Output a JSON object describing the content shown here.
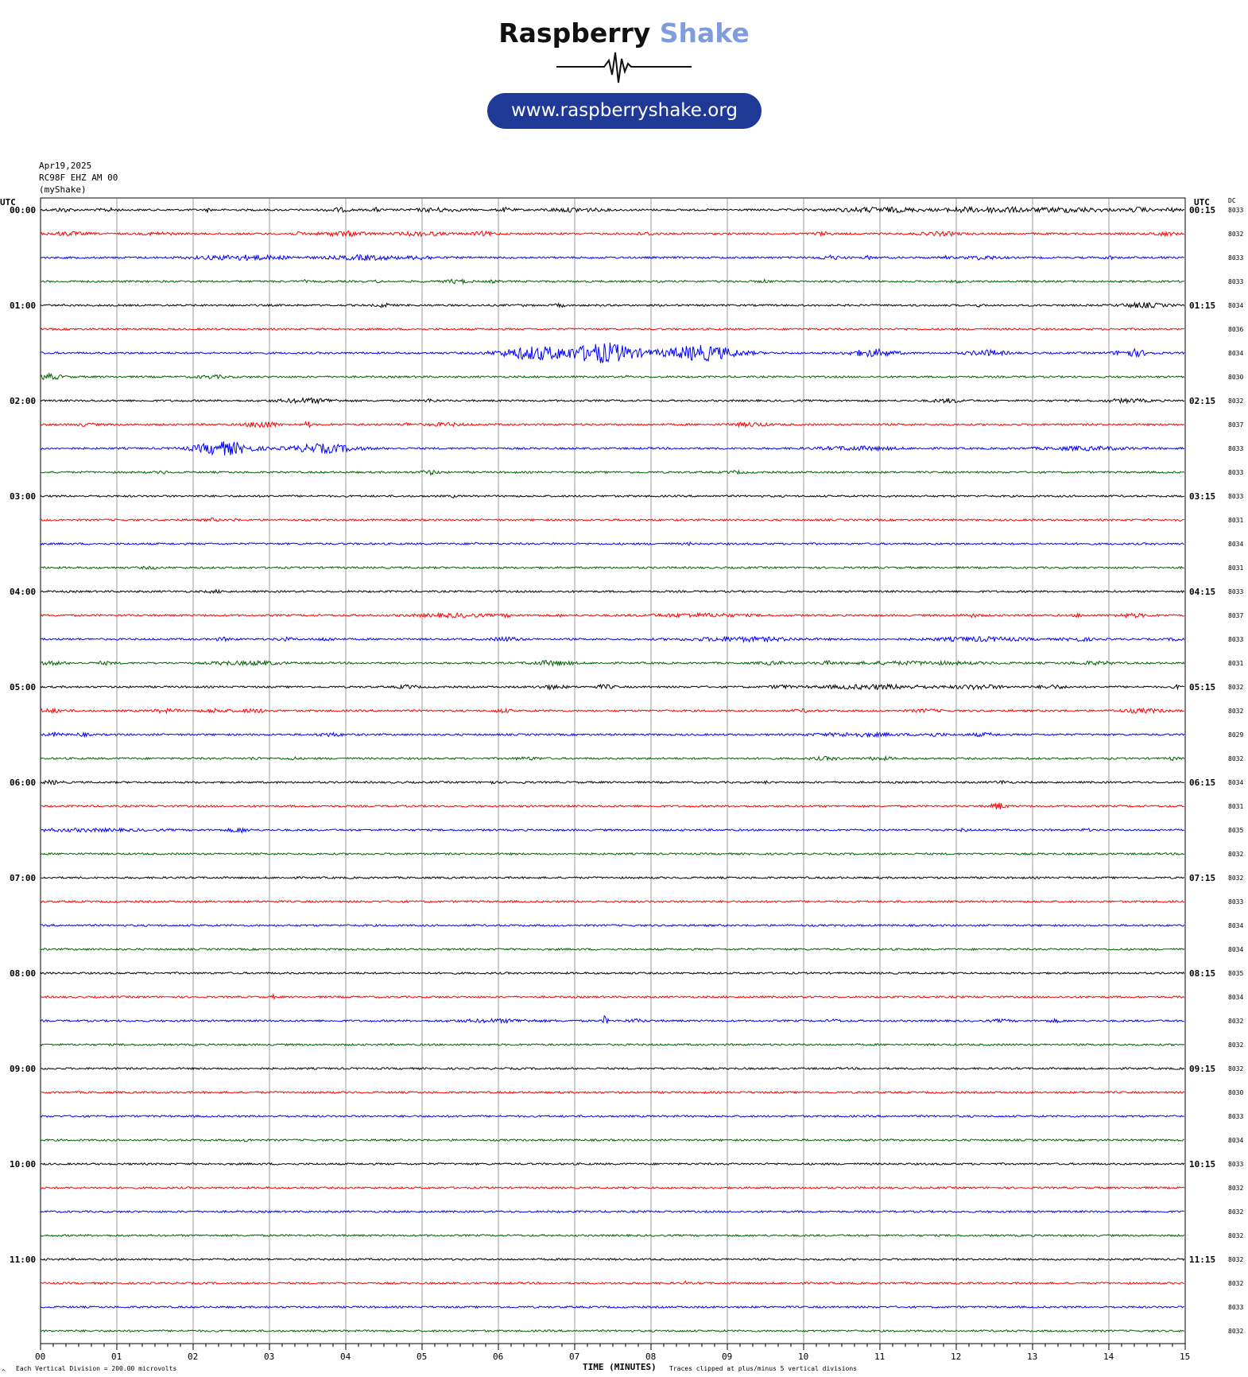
{
  "header": {
    "logo_word1": "Raspberry",
    "logo_word2": "Shake",
    "url": "www.raspberryshake.org",
    "date": "Apr19,2025",
    "station": "RC98F EHZ AM 00",
    "network": "(myShake)",
    "left_utc": "UTC",
    "right_utc": "UTC",
    "dc_label": "DC"
  },
  "footer": {
    "x_axis_title": "TIME (MINUTES)",
    "division_note": "Each Vertical Division =  200.00 microvolts",
    "clip_note": "Traces clipped at plus/minus 5 vertical divisions",
    "corner_mark": "^"
  },
  "colors": {
    "black": "#000000",
    "red": "#ff0000",
    "blue": "#0000ff",
    "green": "#006400",
    "brand_blue": "#1e3a96",
    "accent": "#7f9cdc"
  },
  "chart_data": {
    "type": "line",
    "title": "",
    "xlabel": "TIME (MINUTES)",
    "xlim": [
      0,
      15
    ],
    "x_ticks": [
      "00",
      "01",
      "02",
      "03",
      "04",
      "05",
      "06",
      "07",
      "08",
      "09",
      "10",
      "11",
      "12",
      "13",
      "14",
      "15"
    ],
    "trace_colors": [
      "black",
      "red",
      "blue",
      "green"
    ],
    "left_time_labels": [
      "00:00",
      "01:00",
      "02:00",
      "03:00",
      "04:00",
      "05:00",
      "06:00",
      "07:00",
      "08:00",
      "09:00",
      "10:00",
      "11:00"
    ],
    "right_time_labels": [
      "00:15",
      "01:15",
      "02:15",
      "03:15",
      "04:15",
      "05:15",
      "06:15",
      "07:15",
      "08:15",
      "09:15",
      "10:15",
      "11:15"
    ],
    "dc_offsets": [
      "8033",
      "8032",
      "8033",
      "8033",
      "8034",
      "8036",
      "8034",
      "8030",
      "8032",
      "8037",
      "8033",
      "8033",
      "8033",
      "8031",
      "8034",
      "8031",
      "8033",
      "8037",
      "8033",
      "8031",
      "8032",
      "8032",
      "8029",
      "8032",
      "8034",
      "8031",
      "8035",
      "8032",
      "8032",
      "8033",
      "8034",
      "8034",
      "8035",
      "8034",
      "8032",
      "8032",
      "8032",
      "8030",
      "8033",
      "8034",
      "8033",
      "8032",
      "8032",
      "8032",
      "8032",
      "8032",
      "8033",
      "8032"
    ],
    "events": [
      [
        [
          0.3,
          0.2,
          2
        ],
        [
          0.9,
          0.2,
          1.5
        ],
        [
          2.2,
          0.05,
          2
        ],
        [
          3.9,
          0.25,
          2
        ],
        [
          4.4,
          0.1,
          2
        ],
        [
          5.2,
          0.45,
          2
        ],
        [
          6.1,
          0.15,
          2
        ],
        [
          7.0,
          0.6,
          2
        ],
        [
          11.0,
          1.0,
          2.5
        ],
        [
          12.05,
          0.3,
          2.5
        ],
        [
          12.55,
          0.55,
          3
        ],
        [
          13.45,
          0.85,
          2.5
        ],
        [
          14.4,
          0.2,
          2.5
        ],
        [
          14.8,
          0.15,
          2
        ]
      ],
      [
        [
          0.35,
          0.4,
          1.8
        ],
        [
          1.55,
          0.3,
          1.5
        ],
        [
          3.4,
          0.15,
          1.5
        ],
        [
          4.0,
          0.5,
          2.5
        ],
        [
          5.0,
          0.5,
          2
        ],
        [
          5.8,
          0.25,
          2
        ],
        [
          7.95,
          0.25,
          1.5
        ],
        [
          10.25,
          0.2,
          1.8
        ],
        [
          11.8,
          0.45,
          1.8
        ],
        [
          14.72,
          0.25,
          2
        ]
      ],
      [
        [
          2.65,
          1.0,
          2.5
        ],
        [
          4.25,
          0.7,
          2.5
        ],
        [
          5.0,
          0.3,
          2
        ],
        [
          10.35,
          0.25,
          2
        ],
        [
          10.85,
          0.1,
          1.5
        ],
        [
          11.85,
          0.1,
          1.5
        ],
        [
          12.35,
          0.35,
          1.8
        ],
        [
          14.0,
          0.1,
          1.8
        ],
        [
          14.7,
          0.05,
          1.5
        ]
      ],
      [
        [
          3.45,
          0.05,
          1.5
        ],
        [
          4.4,
          0.05,
          1.5
        ],
        [
          5.45,
          0.25,
          2
        ],
        [
          5.95,
          0.1,
          1.5
        ],
        [
          9.5,
          0.1,
          1.5
        ],
        [
          12.0,
          0.08,
          1.5
        ]
      ],
      [
        [
          4.5,
          0.15,
          2
        ],
        [
          6.3,
          0.05,
          1.5
        ],
        [
          6.8,
          0.1,
          1.8
        ],
        [
          12.3,
          0.05,
          1.5
        ],
        [
          14.45,
          0.45,
          2.5
        ]
      ],
      [],
      [
        [
          6.5,
          0.75,
          8
        ],
        [
          7.4,
          0.7,
          12
        ],
        [
          8.65,
          0.8,
          9
        ],
        [
          10.9,
          0.5,
          4
        ],
        [
          12.4,
          0.4,
          3
        ],
        [
          14.3,
          0.35,
          4
        ]
      ],
      [
        [
          0.1,
          0.3,
          3
        ],
        [
          2.25,
          0.35,
          1.5
        ],
        [
          7.7,
          0.05,
          1.5
        ]
      ],
      [
        [
          3.5,
          0.6,
          2.5
        ],
        [
          5.1,
          0.15,
          1.5
        ],
        [
          11.9,
          0.35,
          1.8
        ],
        [
          14.25,
          0.45,
          1.8
        ]
      ],
      [
        [
          0.6,
          0.2,
          1.5
        ],
        [
          2.9,
          0.3,
          4
        ],
        [
          3.5,
          0.05,
          5
        ],
        [
          4.8,
          0.1,
          1.5
        ],
        [
          5.3,
          0.4,
          1.5
        ],
        [
          9.3,
          0.4,
          2
        ]
      ],
      [
        [
          2.4,
          0.6,
          8
        ],
        [
          3.7,
          0.7,
          5
        ],
        [
          10.7,
          0.8,
          2
        ],
        [
          13.7,
          1.0,
          1.8
        ]
      ],
      [
        [
          1.6,
          0.1,
          1.5
        ],
        [
          5.1,
          0.2,
          2
        ],
        [
          9.1,
          0.2,
          1.2
        ]
      ],
      [
        [
          5.4,
          0.05,
          1.2
        ]
      ],
      [
        [
          2.25,
          0.15,
          1.5
        ],
        [
          2.55,
          0.05,
          1.2
        ],
        [
          14.9,
          0.05,
          1.5
        ]
      ],
      [
        [
          5.7,
          0.05,
          1.2
        ],
        [
          6.75,
          0.05,
          1.2
        ],
        [
          8.5,
          0.05,
          1.2
        ]
      ],
      [
        [
          1.45,
          0.2,
          1
        ]
      ],
      [
        [
          2.3,
          0.2,
          1.2
        ]
      ],
      [
        [
          5.4,
          0.8,
          1.8
        ],
        [
          6.1,
          0.1,
          1.5
        ],
        [
          6.8,
          0.05,
          1.2
        ],
        [
          8.6,
          1.0,
          1.8
        ],
        [
          12.2,
          0.2,
          1.5
        ],
        [
          13.6,
          0.1,
          1.5
        ],
        [
          14.3,
          0.35,
          1.8
        ]
      ],
      [
        [
          2.4,
          0.2,
          1.5
        ],
        [
          3.2,
          0.2,
          1.5
        ],
        [
          3.75,
          0.2,
          1.5
        ],
        [
          6.1,
          0.3,
          2
        ],
        [
          9.2,
          1.2,
          2.2
        ],
        [
          12.3,
          1.0,
          2.2
        ],
        [
          13.6,
          0.3,
          1.8
        ],
        [
          14.9,
          0.15,
          1.5
        ]
      ],
      [
        [
          0.15,
          0.3,
          1.5
        ],
        [
          0.85,
          0.2,
          1.5
        ],
        [
          2.4,
          0.3,
          1.5
        ],
        [
          2.85,
          0.5,
          2
        ],
        [
          6.7,
          0.45,
          2.5
        ],
        [
          9.6,
          0.3,
          1.5
        ],
        [
          10.3,
          0.2,
          1.5
        ],
        [
          11.5,
          1.5,
          1.5
        ],
        [
          13.8,
          0.5,
          1.5
        ]
      ],
      [
        [
          4.8,
          0.2,
          1.8
        ],
        [
          6.7,
          0.3,
          1.8
        ],
        [
          7.4,
          0.2,
          2
        ],
        [
          9.7,
          0.2,
          1.8
        ],
        [
          10.95,
          1.2,
          2.2
        ],
        [
          12.3,
          0.5,
          2.2
        ],
        [
          13.25,
          0.3,
          1.8
        ],
        [
          14.9,
          0.1,
          2
        ]
      ],
      [
        [
          0.15,
          0.3,
          1.8
        ],
        [
          1.65,
          0.3,
          1.8
        ],
        [
          2.3,
          0.3,
          1.8
        ],
        [
          2.8,
          0.3,
          1.8
        ],
        [
          6.05,
          0.2,
          1.8
        ],
        [
          10.0,
          0.2,
          1.5
        ],
        [
          11.6,
          0.3,
          1.5
        ],
        [
          14.45,
          0.5,
          2
        ]
      ],
      [
        [
          0.2,
          0.15,
          1.8
        ],
        [
          0.55,
          0.15,
          1.5
        ],
        [
          3.8,
          0.25,
          1.8
        ],
        [
          10.7,
          0.9,
          1.8
        ],
        [
          11.7,
          0.3,
          1.5
        ],
        [
          12.35,
          0.3,
          1.5
        ]
      ],
      [
        [
          2.8,
          0.1,
          1.5
        ],
        [
          3.3,
          0.1,
          1.5
        ],
        [
          6.4,
          0.3,
          1.2
        ],
        [
          10.3,
          0.3,
          1.5
        ],
        [
          11.0,
          0.3,
          1.5
        ],
        [
          14.85,
          0.1,
          1.8
        ]
      ],
      [
        [
          0.15,
          0.2,
          1.8
        ],
        [
          5.9,
          0.1,
          1.5
        ],
        [
          6.3,
          0.05,
          1.2
        ],
        [
          9.5,
          0.05,
          1.2
        ],
        [
          12.6,
          0.15,
          1.5
        ]
      ],
      [
        [
          12.55,
          0.15,
          4
        ]
      ],
      [
        [
          0.5,
          1.5,
          1.2
        ],
        [
          2.6,
          0.2,
          2.5
        ],
        [
          12.1,
          0.1,
          1.2
        ],
        [
          13.7,
          0.1,
          1.2
        ]
      ],
      [],
      [],
      [],
      [],
      [],
      [],
      [
        [
          3.05,
          0.02,
          2
        ]
      ],
      [
        [
          6.0,
          0.9,
          1.5
        ],
        [
          7.4,
          0.05,
          6
        ],
        [
          7.8,
          0.2,
          1.5
        ],
        [
          10.4,
          0.15,
          1.2
        ],
        [
          12.6,
          0.2,
          1.2
        ],
        [
          13.3,
          0.2,
          1.2
        ]
      ],
      [],
      [],
      [],
      [],
      [
        [
          2.7,
          0.1,
          1.2
        ]
      ],
      [],
      [],
      [],
      [],
      [],
      [
        [
          8.45,
          0.02,
          2
        ]
      ]
    ]
  }
}
